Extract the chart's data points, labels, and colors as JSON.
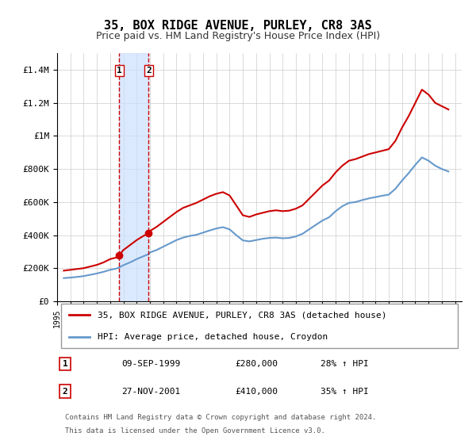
{
  "title": "35, BOX RIDGE AVENUE, PURLEY, CR8 3AS",
  "subtitle": "Price paid vs. HM Land Registry's House Price Index (HPI)",
  "ylabel_ticks": [
    "£0",
    "£200K",
    "£400K",
    "£600K",
    "£800K",
    "£1M",
    "£1.2M",
    "£1.4M"
  ],
  "ylim": [
    0,
    1500000
  ],
  "yticks": [
    0,
    200000,
    400000,
    600000,
    800000,
    1000000,
    1200000,
    1400000
  ],
  "xlim_start": 1995.0,
  "xlim_end": 2025.5,
  "sale1_date": 1999.69,
  "sale1_price": 280000,
  "sale1_label": "1",
  "sale2_date": 2001.9,
  "sale2_price": 410000,
  "sale2_label": "2",
  "legend_line1": "35, BOX RIDGE AVENUE, PURLEY, CR8 3AS (detached house)",
  "legend_line2": "HPI: Average price, detached house, Croydon",
  "table_row1": [
    "1",
    "09-SEP-1999",
    "£280,000",
    "28% ↑ HPI"
  ],
  "table_row2": [
    "2",
    "27-NOV-2001",
    "£410,000",
    "35% ↑ HPI"
  ],
  "footer1": "Contains HM Land Registry data © Crown copyright and database right 2024.",
  "footer2": "This data is licensed under the Open Government Licence v3.0.",
  "red_color": "#cc0000",
  "blue_color": "#6699cc",
  "shade_color": "#cce0ff"
}
